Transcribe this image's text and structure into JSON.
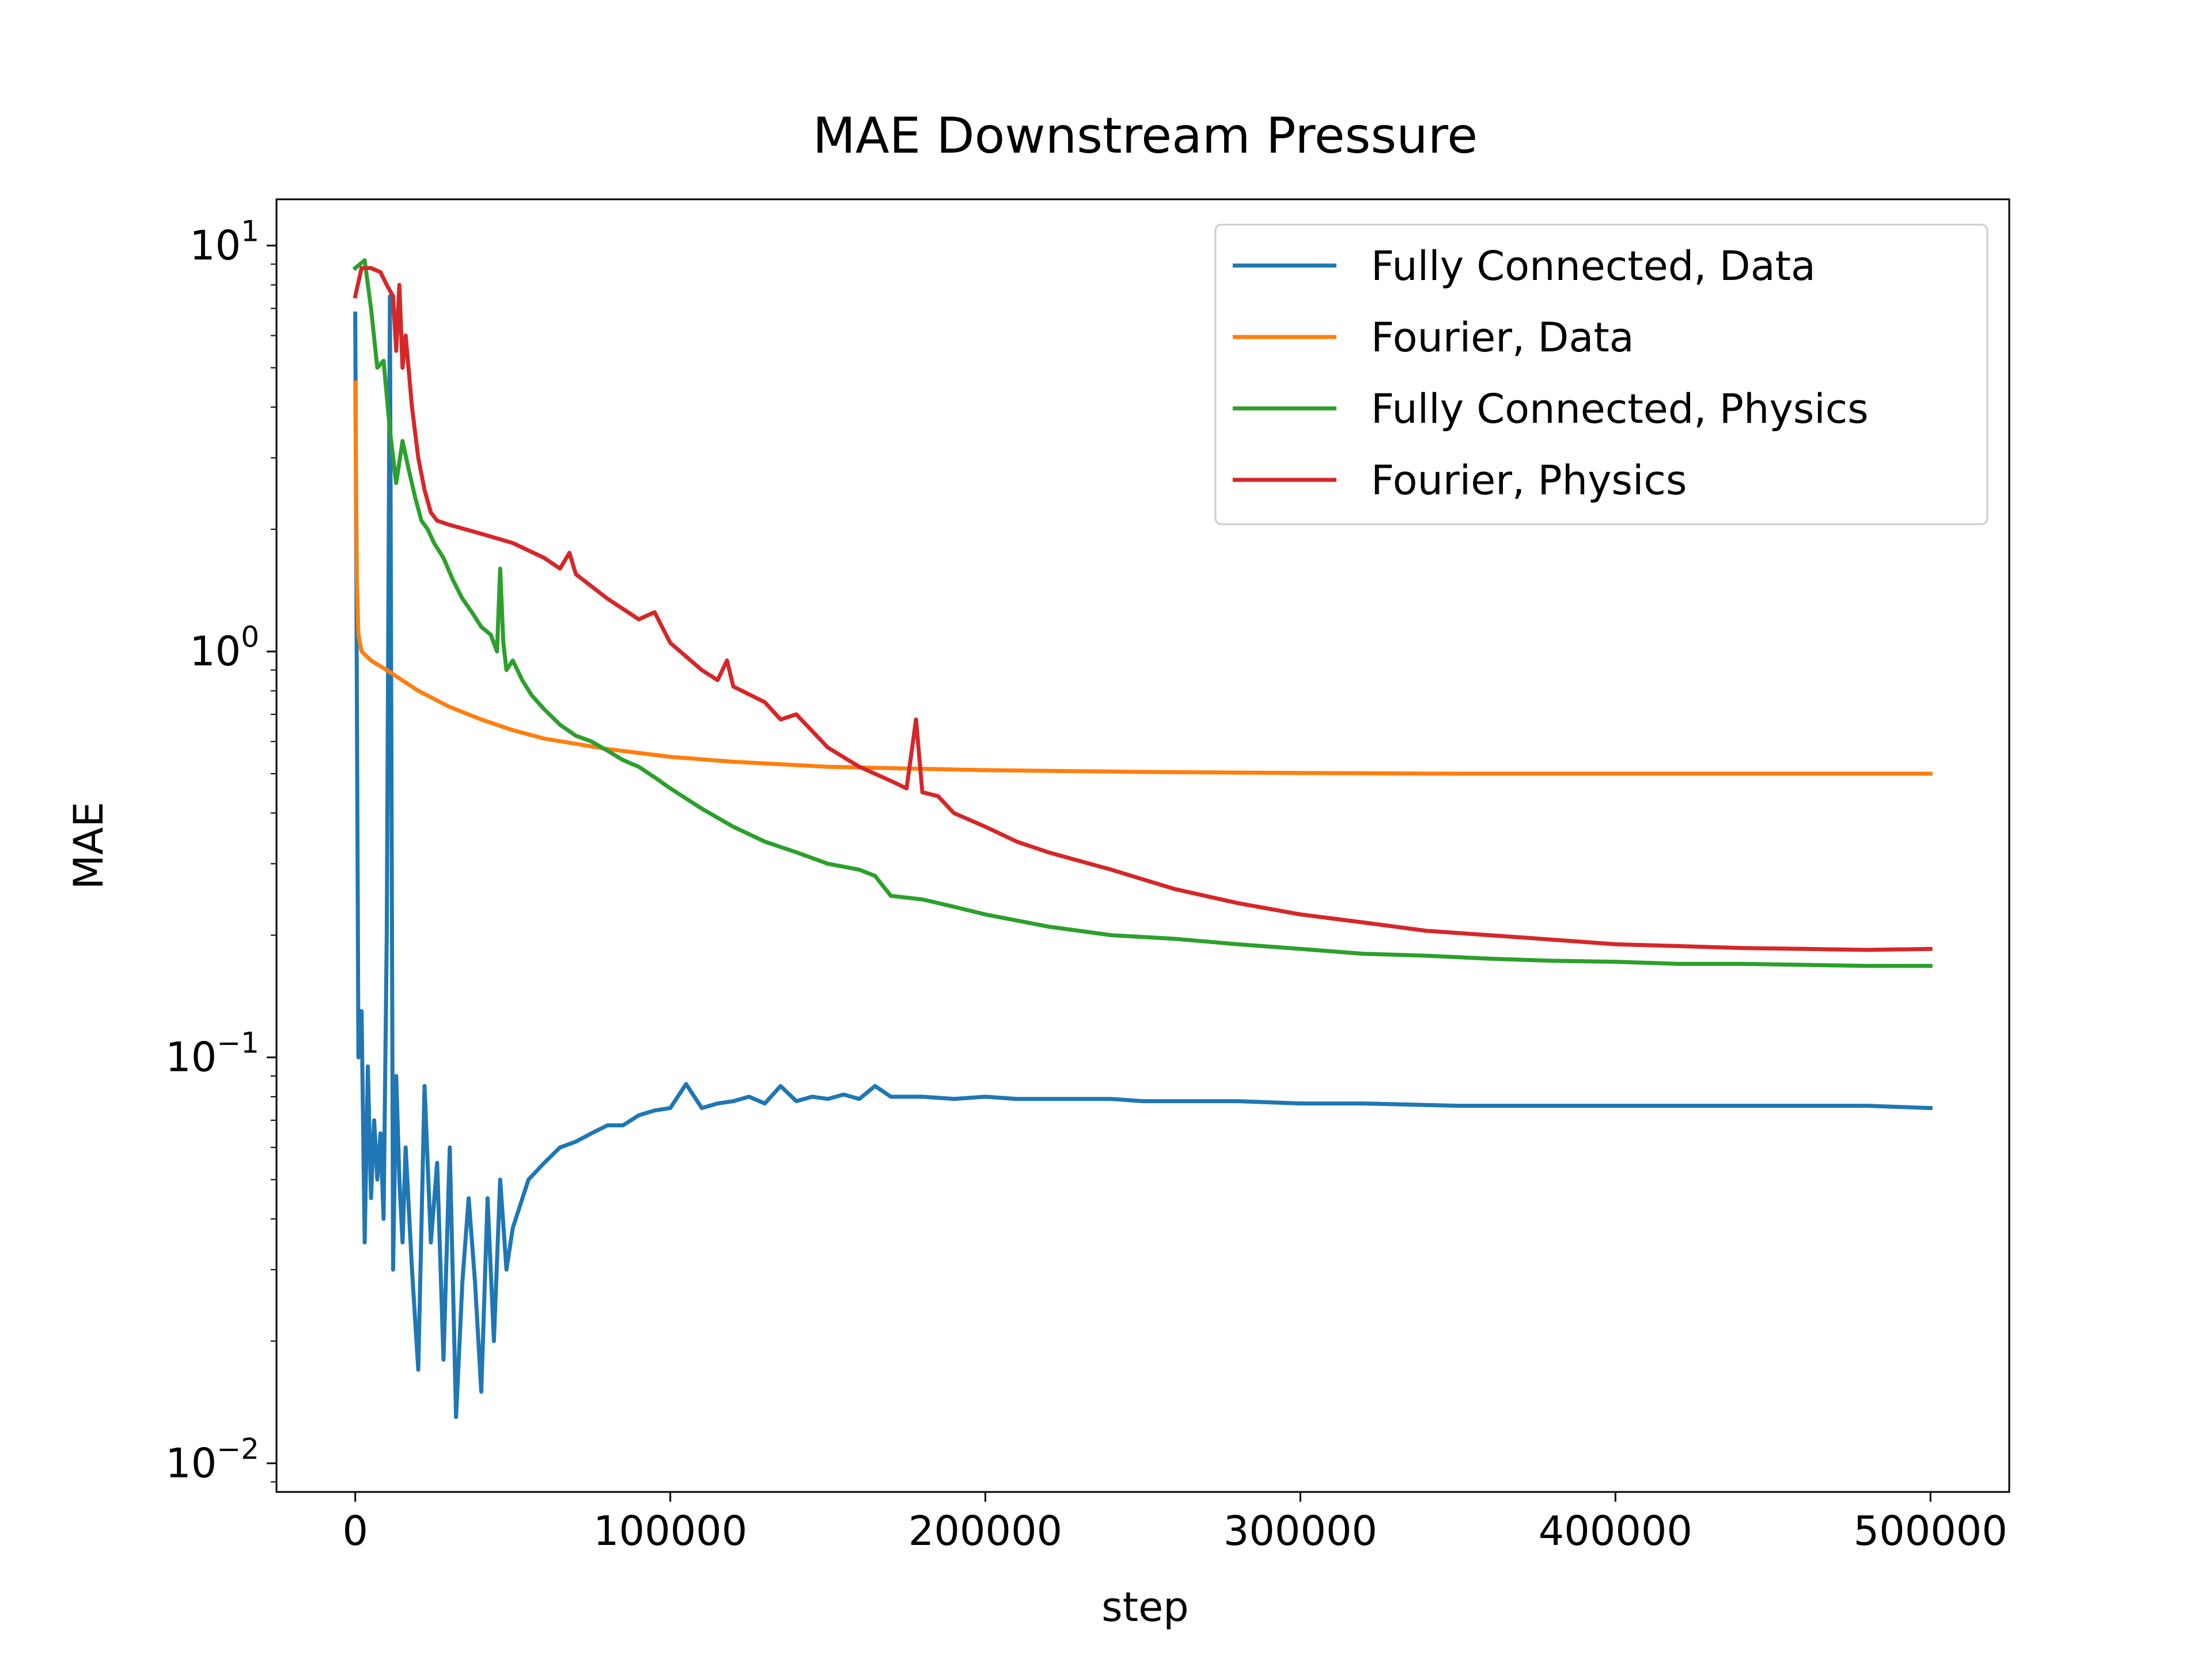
{
  "chart_data": {
    "type": "line",
    "title": "MAE Downstream Pressure",
    "xlabel": "step",
    "ylabel": "MAE",
    "xscale": "linear",
    "yscale": "log",
    "xlim": [
      -25000,
      525000
    ],
    "ylim": [
      0.0085,
      13.0
    ],
    "grid": false,
    "legend_position": "top-right",
    "x_ticks": [
      0,
      100000,
      200000,
      300000,
      400000,
      500000
    ],
    "x_tick_labels": [
      "0",
      "100000",
      "200000",
      "300000",
      "400000",
      "500000"
    ],
    "y_ticks": [
      0.01,
      0.1,
      1,
      10
    ],
    "y_tick_base": "10",
    "y_tick_exponents": [
      "−2",
      "−1",
      "0",
      "1"
    ],
    "series": [
      {
        "name": "Fully Connected, Data",
        "color": "#1f77b4",
        "x": [
          0,
          1000,
          2000,
          3000,
          4000,
          5000,
          6000,
          7000,
          8000,
          9000,
          10000,
          11000,
          12000,
          13000,
          14000,
          15000,
          16000,
          18000,
          20000,
          22000,
          24000,
          26000,
          28000,
          30000,
          32000,
          34000,
          36000,
          38000,
          40000,
          42000,
          44000,
          46000,
          48000,
          50000,
          55000,
          60000,
          65000,
          70000,
          75000,
          80000,
          85000,
          90000,
          95000,
          100000,
          105000,
          110000,
          115000,
          120000,
          125000,
          130000,
          135000,
          140000,
          145000,
          150000,
          155000,
          160000,
          165000,
          170000,
          180000,
          190000,
          200000,
          210000,
          220000,
          230000,
          240000,
          250000,
          260000,
          280000,
          300000,
          320000,
          350000,
          380000,
          400000,
          420000,
          450000,
          480000,
          500000
        ],
        "y": [
          6.8,
          0.1,
          0.13,
          0.035,
          0.095,
          0.045,
          0.07,
          0.05,
          0.065,
          0.04,
          0.2,
          7.5,
          0.03,
          0.09,
          0.05,
          0.035,
          0.06,
          0.03,
          0.017,
          0.085,
          0.035,
          0.055,
          0.018,
          0.06,
          0.013,
          0.028,
          0.045,
          0.028,
          0.015,
          0.045,
          0.02,
          0.05,
          0.03,
          0.038,
          0.05,
          0.055,
          0.06,
          0.062,
          0.065,
          0.068,
          0.068,
          0.072,
          0.074,
          0.075,
          0.086,
          0.075,
          0.077,
          0.078,
          0.08,
          0.077,
          0.085,
          0.078,
          0.08,
          0.079,
          0.081,
          0.079,
          0.085,
          0.08,
          0.08,
          0.079,
          0.08,
          0.079,
          0.079,
          0.079,
          0.079,
          0.078,
          0.078,
          0.078,
          0.077,
          0.077,
          0.076,
          0.076,
          0.076,
          0.076,
          0.076,
          0.076,
          0.075
        ]
      },
      {
        "name": "Fourier, Data",
        "color": "#ff7f0e",
        "x": [
          0,
          500,
          1000,
          2000,
          5000,
          10000,
          20000,
          30000,
          40000,
          50000,
          60000,
          80000,
          100000,
          120000,
          150000,
          200000,
          250000,
          300000,
          350000,
          400000,
          450000,
          500000
        ],
        "y": [
          4.6,
          1.5,
          1.1,
          1.0,
          0.95,
          0.9,
          0.8,
          0.73,
          0.68,
          0.64,
          0.61,
          0.575,
          0.55,
          0.535,
          0.52,
          0.51,
          0.505,
          0.502,
          0.5,
          0.5,
          0.5,
          0.5
        ]
      },
      {
        "name": "Fully Connected, Physics",
        "color": "#2ca02c",
        "x": [
          0,
          3000,
          5000,
          7000,
          9000,
          11000,
          13000,
          15000,
          17000,
          19000,
          21000,
          23000,
          25000,
          28000,
          31000,
          34000,
          37000,
          40000,
          43000,
          45000,
          46000,
          47000,
          48000,
          50000,
          53000,
          56000,
          60000,
          65000,
          70000,
          75000,
          80000,
          85000,
          90000,
          95000,
          100000,
          110000,
          120000,
          130000,
          140000,
          150000,
          160000,
          165000,
          170000,
          180000,
          190000,
          200000,
          220000,
          240000,
          260000,
          280000,
          300000,
          320000,
          340000,
          360000,
          380000,
          400000,
          420000,
          440000,
          460000,
          480000,
          500000
        ],
        "y": [
          8.8,
          9.2,
          7.0,
          5.0,
          5.2,
          3.5,
          2.6,
          3.3,
          2.8,
          2.4,
          2.1,
          2.0,
          1.85,
          1.7,
          1.5,
          1.35,
          1.25,
          1.15,
          1.1,
          1.0,
          1.6,
          1.05,
          0.9,
          0.95,
          0.85,
          0.78,
          0.72,
          0.66,
          0.62,
          0.6,
          0.57,
          0.54,
          0.52,
          0.49,
          0.46,
          0.41,
          0.37,
          0.34,
          0.32,
          0.3,
          0.29,
          0.28,
          0.25,
          0.245,
          0.235,
          0.225,
          0.21,
          0.2,
          0.196,
          0.19,
          0.185,
          0.18,
          0.178,
          0.175,
          0.173,
          0.172,
          0.17,
          0.17,
          0.169,
          0.168,
          0.168
        ]
      },
      {
        "name": "Fourier, Physics",
        "color": "#d62728",
        "x": [
          0,
          2000,
          5000,
          8000,
          10000,
          12000,
          13000,
          14000,
          15000,
          16000,
          18000,
          20000,
          22000,
          24000,
          26000,
          30000,
          40000,
          50000,
          60000,
          65000,
          68000,
          70000,
          80000,
          90000,
          95000,
          100000,
          110000,
          115000,
          118000,
          120000,
          130000,
          135000,
          140000,
          150000,
          160000,
          170000,
          175000,
          178000,
          180000,
          185000,
          190000,
          200000,
          210000,
          220000,
          240000,
          260000,
          280000,
          300000,
          320000,
          340000,
          360000,
          380000,
          400000,
          420000,
          440000,
          460000,
          480000,
          500000
        ],
        "y": [
          7.5,
          8.8,
          8.8,
          8.6,
          8.0,
          7.5,
          5.5,
          8.0,
          5.0,
          6.0,
          4.0,
          3.0,
          2.5,
          2.2,
          2.1,
          2.05,
          1.95,
          1.85,
          1.7,
          1.6,
          1.75,
          1.55,
          1.35,
          1.2,
          1.25,
          1.05,
          0.9,
          0.85,
          0.95,
          0.82,
          0.75,
          0.68,
          0.7,
          0.58,
          0.52,
          0.48,
          0.46,
          0.68,
          0.45,
          0.44,
          0.4,
          0.37,
          0.34,
          0.32,
          0.29,
          0.26,
          0.24,
          0.225,
          0.215,
          0.205,
          0.2,
          0.195,
          0.19,
          0.188,
          0.186,
          0.185,
          0.184,
          0.185
        ]
      }
    ]
  }
}
